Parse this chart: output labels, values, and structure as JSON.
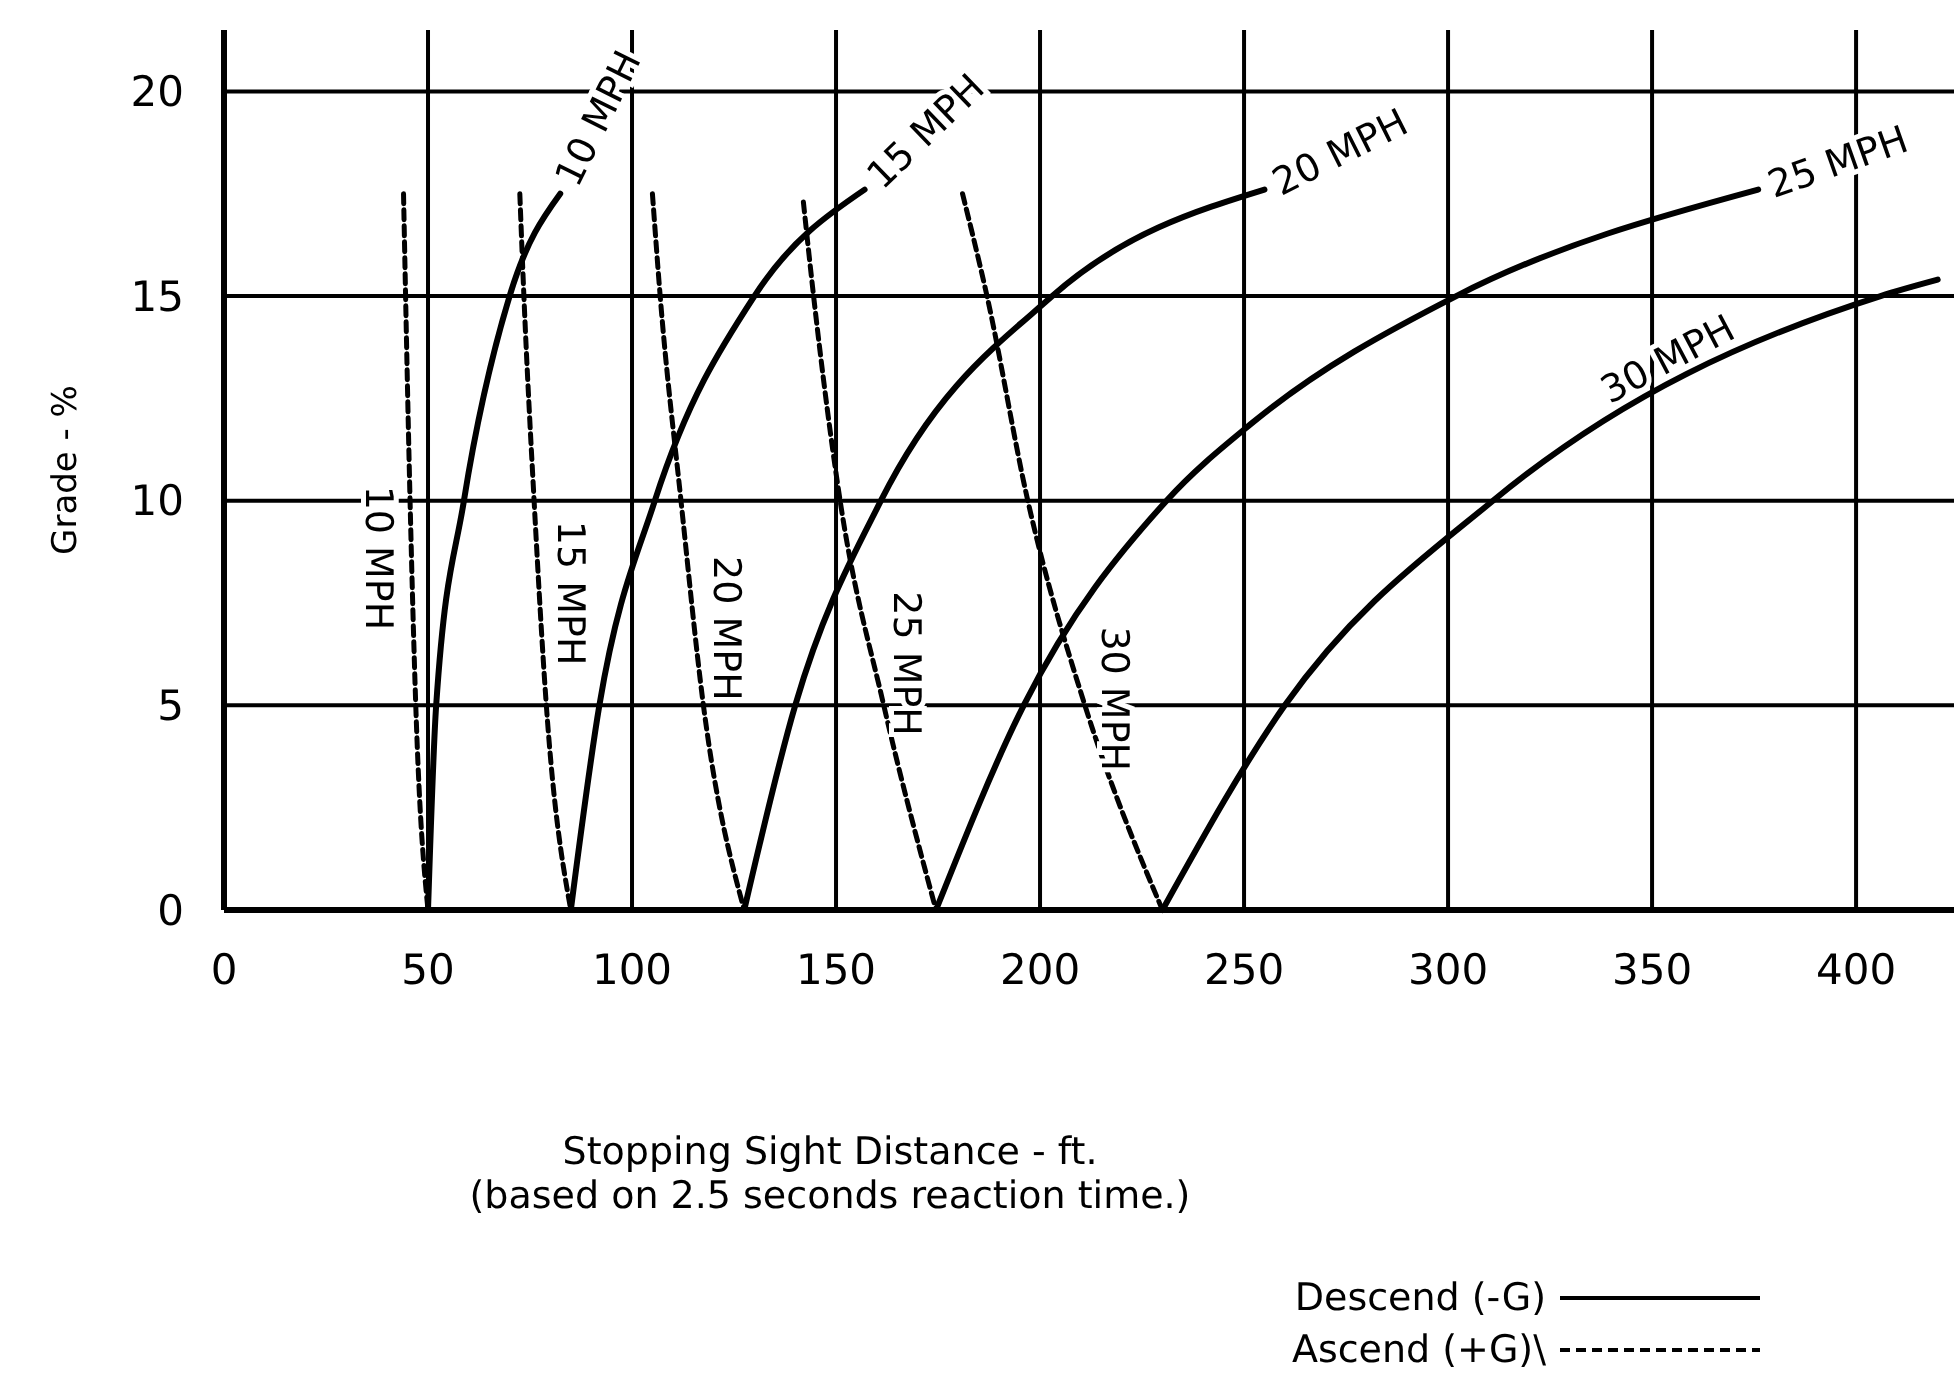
{
  "chart_data": {
    "type": "line",
    "xlabel": "Stopping Sight Distance - ft.\n(based on 2.5 seconds reaction time.)",
    "ylabel": "Grade - %",
    "xlim": [
      0,
      424
    ],
    "xticks": [
      0,
      50,
      100,
      150,
      200,
      250,
      300,
      350,
      400
    ],
    "ylim": [
      0,
      21.5
    ],
    "yticks": [
      0,
      5,
      10,
      15,
      20
    ],
    "grid": true,
    "marker": "none",
    "annotations": [
      "Descend (-G)",
      "Ascend (+G)\\"
    ],
    "series": [
      {
        "name": "10 MPH",
        "color": "#000000",
        "line_style": "solid",
        "x": [
          50,
          52,
          58.8,
          70,
          82.4
        ],
        "values": [
          0,
          5,
          10,
          15,
          17.5
        ]
      },
      {
        "name": "15 MPH",
        "color": "#000000",
        "line_style": "solid",
        "x": [
          85,
          92,
          105.6,
          130,
          157
        ],
        "values": [
          0,
          5,
          10,
          15,
          17.6
        ]
      },
      {
        "name": "20 MPH",
        "color": "#000000",
        "line_style": "solid",
        "x": [
          127.5,
          140,
          161,
          203,
          255
        ],
        "values": [
          0,
          5,
          10,
          15,
          17.6
        ]
      },
      {
        "name": "25 MPH",
        "color": "#000000",
        "line_style": "solid",
        "x": [
          174.5,
          196,
          231,
          252,
          302,
          376
        ],
        "values": [
          0,
          5,
          10,
          11.9,
          15,
          17.6
        ]
      },
      {
        "name": "30 MPH",
        "color": "#000000",
        "line_style": "solid",
        "x": [
          230,
          260,
          311,
          406,
          420
        ],
        "values": [
          0,
          5,
          10,
          15,
          15.4
        ]
      },
      {
        "name": "10 MPH",
        "color": "#000000",
        "line_style": "dashed",
        "x": [
          44,
          45.6,
          47,
          50
        ],
        "values": [
          17.5,
          10,
          5,
          0
        ]
      },
      {
        "name": "15 MPH",
        "color": "#000000",
        "line_style": "dashed",
        "x": [
          72.5,
          73.5,
          76,
          79,
          85
        ],
        "values": [
          17.5,
          15,
          10,
          5,
          0
        ]
      },
      {
        "name": "20 MPH",
        "color": "#000000",
        "line_style": "dashed",
        "x": [
          105,
          106.9,
          112,
          117.5,
          127.5
        ],
        "values": [
          17.5,
          15,
          10,
          5,
          0
        ]
      },
      {
        "name": "25 MPH",
        "color": "#000000",
        "line_style": "dashed",
        "x": [
          142,
          144.5,
          151,
          161.7,
          174.5
        ],
        "values": [
          17.3,
          15,
          10,
          5,
          0
        ]
      },
      {
        "name": "30 MPH",
        "color": "#000000",
        "line_style": "dashed",
        "x": [
          181,
          187,
          197,
          211,
          230
        ],
        "values": [
          17.5,
          15,
          10,
          5,
          0
        ]
      }
    ]
  }
}
